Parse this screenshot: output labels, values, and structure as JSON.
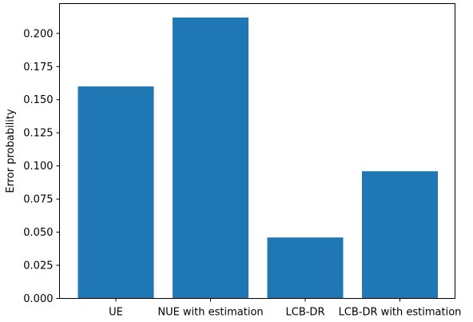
{
  "chart_data": {
    "type": "bar",
    "title": "",
    "xlabel": "",
    "ylabel": "Error probability",
    "categories": [
      "UE",
      "NUE with estimation",
      "LCB-DR",
      "LCB-DR with estimation"
    ],
    "values": [
      0.16,
      0.212,
      0.046,
      0.096
    ],
    "ylim": [
      0,
      0.2225
    ],
    "yticks": [
      0.0,
      0.025,
      0.05,
      0.075,
      0.1,
      0.125,
      0.15,
      0.175,
      0.2
    ],
    "ytick_labels": [
      "0.000",
      "0.025",
      "0.050",
      "0.075",
      "0.100",
      "0.125",
      "0.150",
      "0.175",
      "0.200"
    ],
    "bar_color": "#1f77b4",
    "grid": false,
    "legend": "none"
  }
}
